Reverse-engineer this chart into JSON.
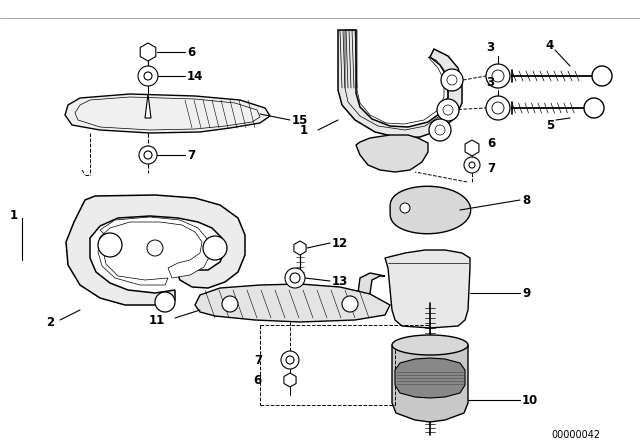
{
  "bg_color": "#ffffff",
  "line_color": "#000000",
  "text_color": "#000000",
  "diagram_id": "00000042",
  "fig_width": 6.4,
  "fig_height": 4.48,
  "dpi": 100,
  "border_color": "#cccccc",
  "label_fontsize": 8.5,
  "id_fontsize": 7.0
}
